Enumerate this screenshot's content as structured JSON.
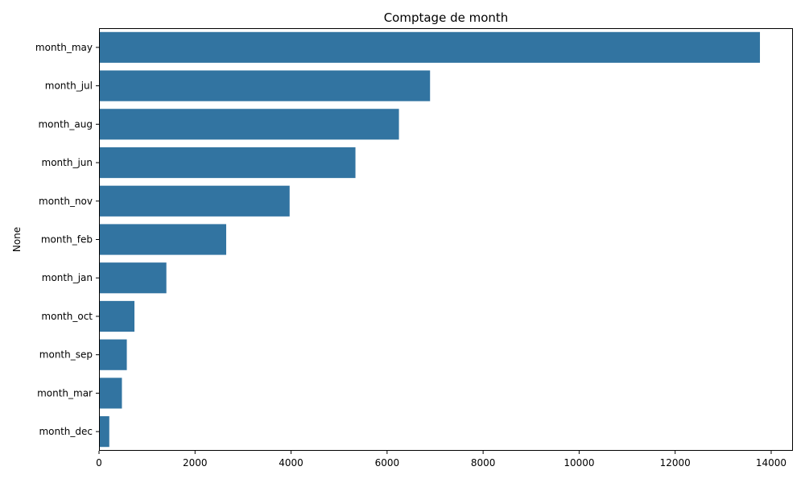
{
  "chart_data": {
    "type": "bar",
    "orientation": "horizontal",
    "title": "Comptage de month",
    "xlabel": "",
    "ylabel": "None",
    "categories": [
      "month_may",
      "month_jul",
      "month_aug",
      "month_jun",
      "month_nov",
      "month_feb",
      "month_jan",
      "month_oct",
      "month_sep",
      "month_mar",
      "month_dec"
    ],
    "values": [
      13766,
      6895,
      6247,
      5341,
      3970,
      2649,
      1403,
      738,
      579,
      477,
      214
    ],
    "xlim": [
      0,
      14453
    ],
    "xticks": [
      0,
      2000,
      4000,
      6000,
      8000,
      10000,
      12000,
      14000
    ],
    "bar_color": "#3274a1",
    "grid": false,
    "legend": "none"
  }
}
